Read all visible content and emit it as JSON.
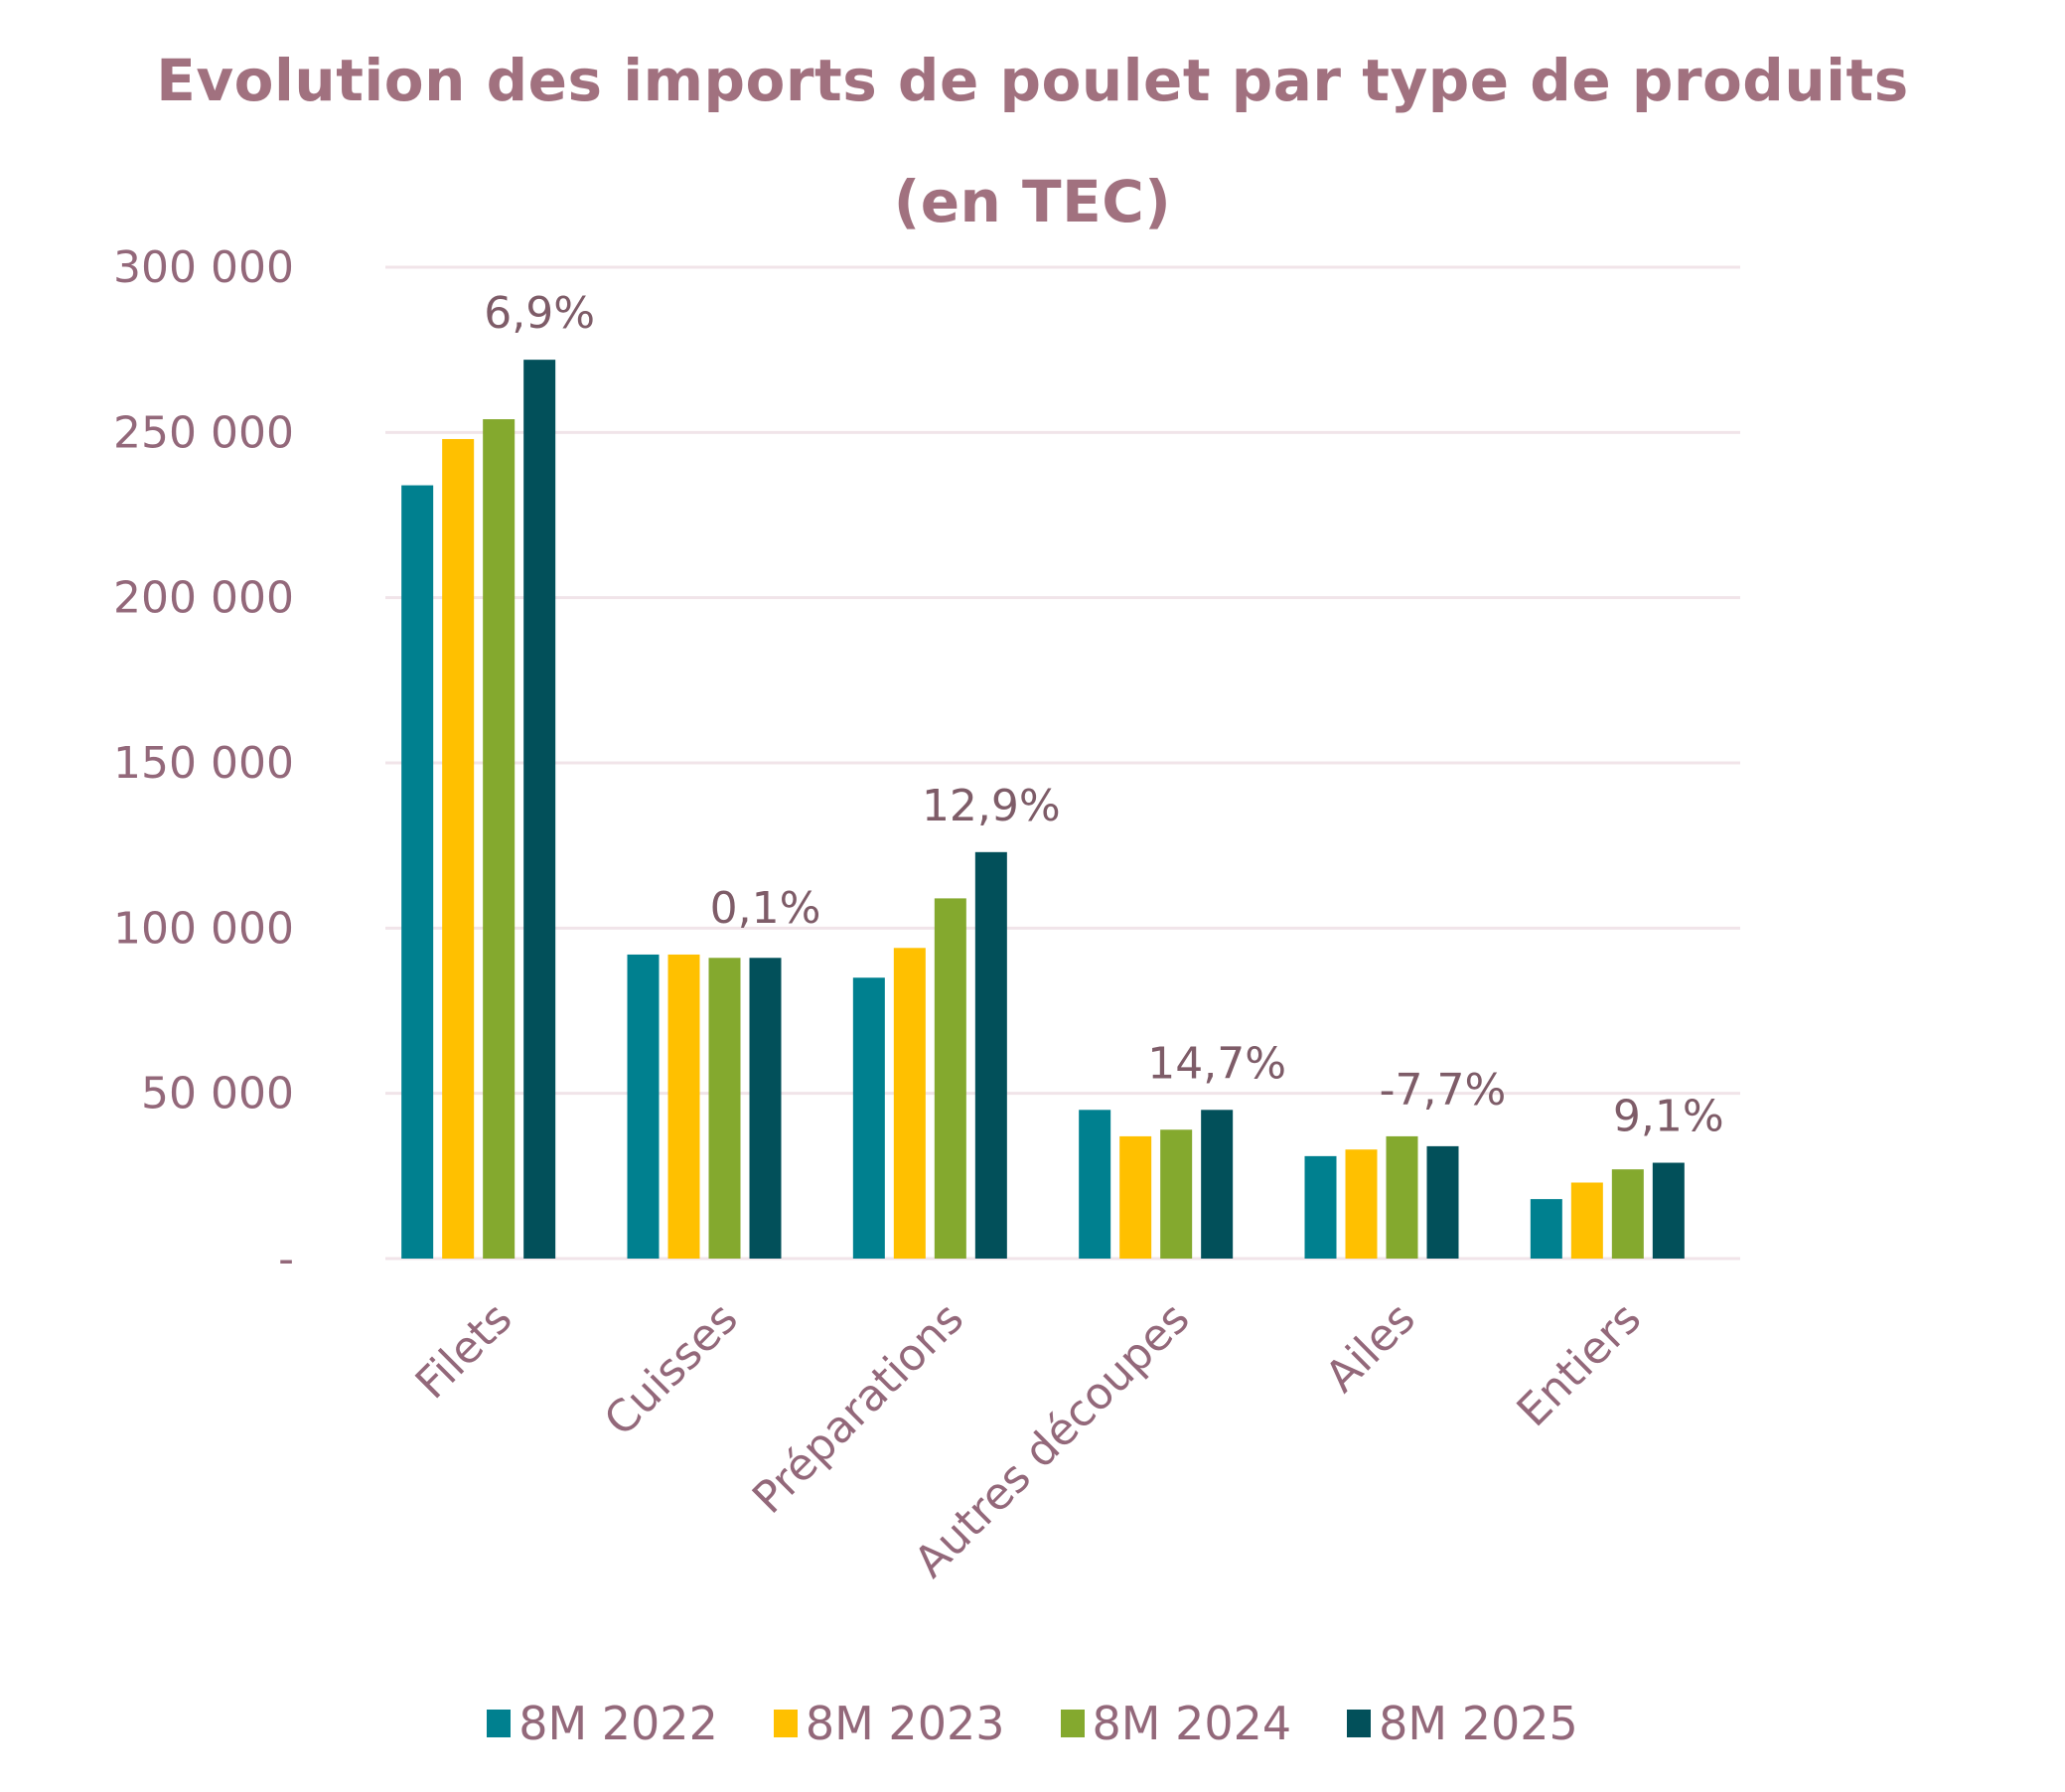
{
  "chart_data": {
    "type": "bar",
    "title": "Evolution des imports de poulet par type de produits (en TEC)",
    "title_lines": [
      "Evolution des imports de poulet par type de produits",
      "(en TEC)"
    ],
    "xlabel": "",
    "ylabel": "",
    "ylim": [
      0,
      300000
    ],
    "yticks": [
      0,
      50000,
      100000,
      150000,
      200000,
      250000,
      300000
    ],
    "ytick_labels": [
      "-",
      "50 000",
      "100 000",
      "150 000",
      "200 000",
      "250 000",
      "300 000"
    ],
    "grid": true,
    "legend_position": "bottom",
    "categories": [
      "Filets",
      "Cuisses",
      "Préparations",
      "Autres découpes",
      "Ailes",
      "Entiers"
    ],
    "series": [
      {
        "name": "8M 2022",
        "color": "#00808f",
        "values": [
          234000,
          92000,
          85000,
          45000,
          31000,
          18000
        ]
      },
      {
        "name": "8M 2023",
        "color": "#ffc000",
        "values": [
          248000,
          92000,
          94000,
          37000,
          33000,
          23000
        ]
      },
      {
        "name": "8M 2024",
        "color": "#84a92e",
        "values": [
          254000,
          91000,
          109000,
          39000,
          37000,
          27000
        ]
      },
      {
        "name": "8M 2025",
        "color": "#02505a",
        "values": [
          272000,
          91000,
          123000,
          45000,
          34000,
          29000
        ]
      }
    ],
    "annotations": [
      "6,9%",
      "0,1%",
      "12,9%",
      "14,7%",
      "-7,7%",
      "9,1%"
    ],
    "colors": {
      "text": "#93687a",
      "title": "#a1717f",
      "annotation": "#7e5c68",
      "grid": "#f1e4e9"
    }
  }
}
